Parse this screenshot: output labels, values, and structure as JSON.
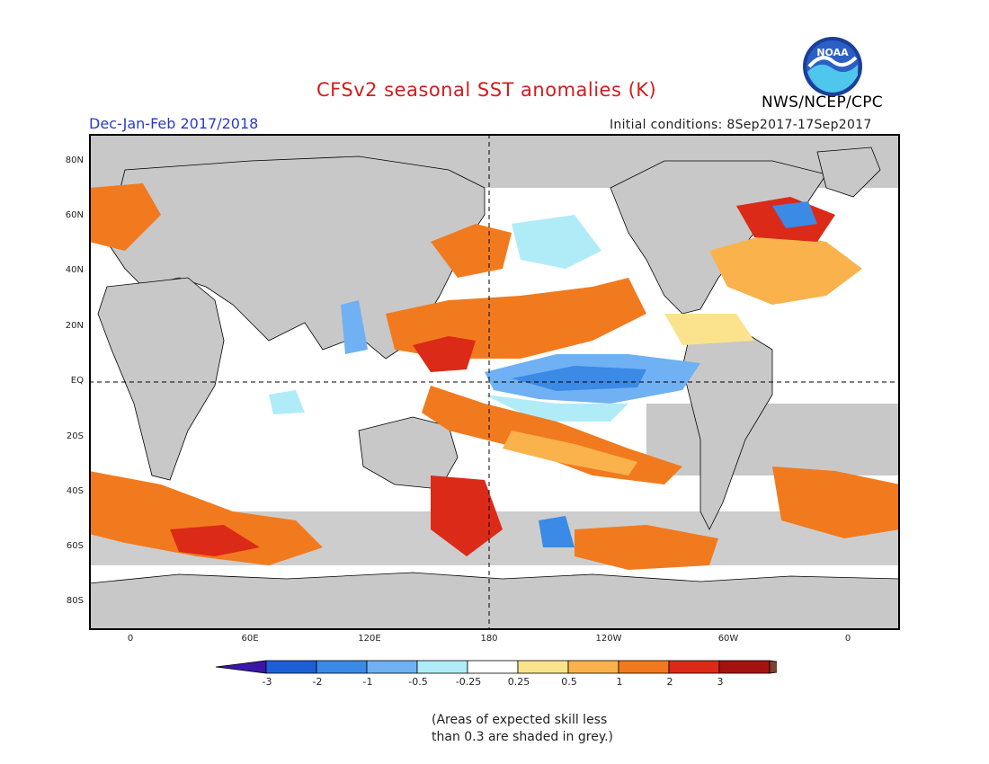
{
  "title": "CFSv2 seasonal SST anomalies (K)",
  "season": "Dec-Jan-Feb 2017/2018",
  "initial_conditions": "Initial conditions: 8Sep2017-17Sep2017",
  "organization": "NWS/NCEP/CPC",
  "logo_text": "NOAA",
  "map": {
    "lat_labels": [
      "80N",
      "60N",
      "40N",
      "20N",
      "EQ",
      "20S",
      "40S",
      "60S",
      "80S"
    ],
    "lon_labels": [
      "0",
      "60E",
      "120E",
      "180",
      "120W",
      "60W",
      "0"
    ],
    "land_color": "#c8c8c8"
  },
  "legend": {
    "colors": [
      "#3a16a8",
      "#1d5fd6",
      "#3a8ae6",
      "#6fb1f3",
      "#b0ecf7",
      "#ffffff",
      "#fbe38d",
      "#f9b24c",
      "#f27a1e",
      "#db2a17",
      "#a51310",
      "#7a4232"
    ],
    "tick_labels": [
      "-3",
      "-2",
      "-1",
      "-0.5",
      "-0.25",
      "0.25",
      "0.5",
      "1",
      "2",
      "3"
    ]
  },
  "note_line1": "(Areas of expected skill less",
  "note_line2": "than 0.3 are shaded in grey.)"
}
